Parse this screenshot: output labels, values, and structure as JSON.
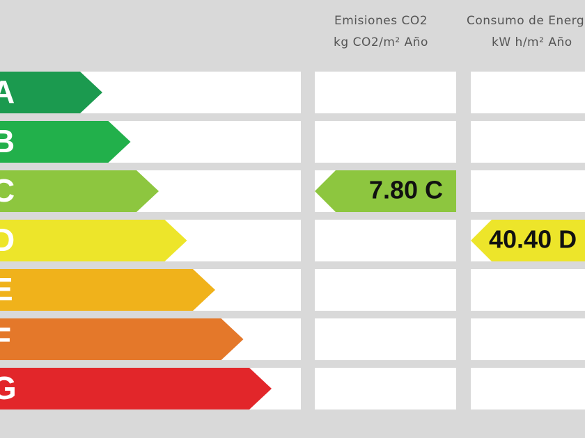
{
  "header": {
    "emissions": {
      "title": "Emisiones CO2",
      "unit": "kg CO2/m² Año"
    },
    "consumption": {
      "title": "Consumo de Energía",
      "unit": "kW h/m² Año"
    }
  },
  "scale": [
    "A",
    "B",
    "C",
    "D",
    "E",
    "F",
    "G"
  ],
  "ratings": {
    "emissions": "7.80 C",
    "consumption": "40.40 D"
  }
}
